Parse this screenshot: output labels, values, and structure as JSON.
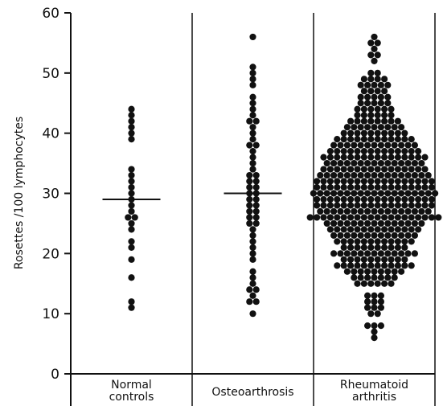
{
  "chart_data": {
    "type": "scatter",
    "ylabel": "Rosettes /100 lymphocytes",
    "ylim": [
      0,
      60
    ],
    "yticks": [
      "0",
      "10",
      "20",
      "30",
      "40",
      "50",
      "60"
    ],
    "grid": false,
    "groups": [
      {
        "label_lines": [
          "Normal",
          "controls"
        ],
        "mean": 29,
        "values": [
          44,
          43,
          42,
          41,
          40,
          39,
          34,
          33,
          32,
          31,
          30,
          29,
          28,
          27,
          26,
          26,
          25,
          24,
          22,
          21,
          19,
          16,
          12,
          11
        ]
      },
      {
        "label_lines": [
          "Osteoarthrosis"
        ],
        "mean": 30,
        "values": [
          56,
          51,
          50,
          49,
          48,
          46,
          45,
          44,
          43,
          42,
          42,
          41,
          40,
          39,
          38,
          38,
          37,
          36,
          35,
          34,
          33,
          33,
          32,
          32,
          31,
          31,
          30,
          30,
          29,
          29,
          28,
          28,
          27,
          27,
          26,
          26,
          25,
          25,
          24,
          23,
          22,
          21,
          20,
          19,
          17,
          16,
          15,
          14,
          14,
          13,
          12,
          12,
          10
        ]
      },
      {
        "label_lines": [
          "Rheumatoid",
          "arthritis"
        ],
        "mean": 30,
        "counts": [
          [
            56,
            1
          ],
          [
            55,
            2
          ],
          [
            54,
            1
          ],
          [
            53,
            2
          ],
          [
            52,
            1
          ],
          [
            50,
            2
          ],
          [
            49,
            4
          ],
          [
            48,
            5
          ],
          [
            47,
            4
          ],
          [
            46,
            5
          ],
          [
            45,
            5
          ],
          [
            44,
            6
          ],
          [
            43,
            6
          ],
          [
            42,
            8
          ],
          [
            41,
            9
          ],
          [
            40,
            10
          ],
          [
            39,
            12
          ],
          [
            38,
            13
          ],
          [
            37,
            14
          ],
          [
            36,
            16
          ],
          [
            35,
            15
          ],
          [
            34,
            16
          ],
          [
            33,
            17
          ],
          [
            32,
            18
          ],
          [
            31,
            18
          ],
          [
            30,
            19
          ],
          [
            29,
            18
          ],
          [
            28,
            18
          ],
          [
            27,
            17
          ],
          [
            26,
            20
          ],
          [
            25,
            15
          ],
          [
            24,
            14
          ],
          [
            23,
            13
          ],
          [
            22,
            12
          ],
          [
            21,
            10
          ],
          [
            20,
            13
          ],
          [
            19,
            10
          ],
          [
            18,
            12
          ],
          [
            17,
            9
          ],
          [
            16,
            7
          ],
          [
            15,
            6
          ],
          [
            13,
            3
          ],
          [
            12,
            3
          ],
          [
            11,
            3
          ],
          [
            10,
            2
          ],
          [
            8,
            3
          ],
          [
            7,
            1
          ],
          [
            6,
            1
          ]
        ]
      }
    ]
  }
}
